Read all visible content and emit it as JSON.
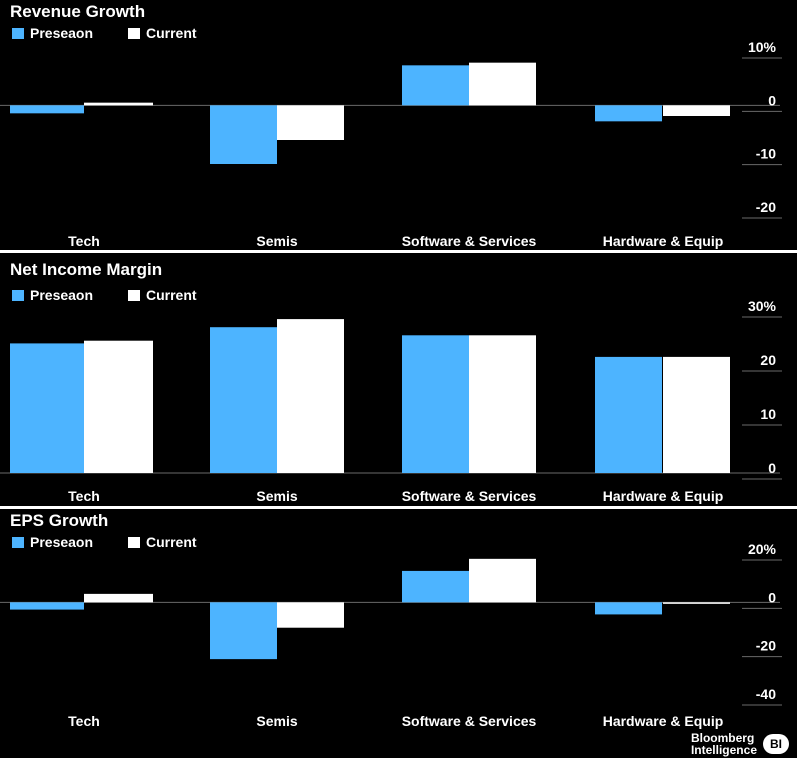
{
  "chart_data": [
    {
      "type": "bar",
      "title": "Revenue Growth",
      "categories": [
        "Tech",
        "Semis",
        "Software & Services",
        "Hardware & Equip"
      ],
      "series": [
        {
          "name": "Preseaon",
          "values": [
            -1.5,
            -11,
            7.5,
            -3
          ]
        },
        {
          "name": "Current",
          "values": [
            0.5,
            -6.5,
            8,
            -2
          ]
        }
      ],
      "yticks": [
        {
          "value": 10,
          "label": "10%"
        },
        {
          "value": 0,
          "label": "0"
        },
        {
          "value": -10,
          "label": "-10"
        },
        {
          "value": -20,
          "label": "-20"
        }
      ],
      "ylim": [
        -20,
        10
      ],
      "legend": "top-left",
      "grid": false
    },
    {
      "type": "bar",
      "title": "Net Income Margin",
      "categories": [
        "Tech",
        "Semis",
        "Software & Services",
        "Hardware & Equip"
      ],
      "series": [
        {
          "name": "Preseaon",
          "values": [
            24,
            27,
            25.5,
            21.5
          ]
        },
        {
          "name": "Current",
          "values": [
            24.5,
            28.5,
            25.5,
            21.5
          ]
        }
      ],
      "yticks": [
        {
          "value": 30,
          "label": "30%"
        },
        {
          "value": 20,
          "label": "20"
        },
        {
          "value": 10,
          "label": "10"
        },
        {
          "value": 0,
          "label": "0"
        }
      ],
      "ylim": [
        0,
        30
      ],
      "legend": "top-left",
      "grid": false
    },
    {
      "type": "bar",
      "title": "EPS Growth",
      "categories": [
        "Tech",
        "Semis",
        "Software & Services",
        "Hardware & Equip"
      ],
      "series": [
        {
          "name": "Preseaon",
          "values": [
            -3,
            -23.5,
            13,
            -5
          ]
        },
        {
          "name": "Current",
          "values": [
            3.5,
            -10.5,
            18,
            -0.5
          ]
        }
      ],
      "yticks": [
        {
          "value": 20,
          "label": "20%"
        },
        {
          "value": 0,
          "label": "0"
        },
        {
          "value": -20,
          "label": "-20"
        },
        {
          "value": -40,
          "label": "-40"
        }
      ],
      "ylim": [
        -40,
        20
      ],
      "legend": "top-left",
      "grid": false
    }
  ],
  "colors": {
    "preseason": "#4db4ff",
    "current": "#ffffff",
    "background": "#000000",
    "axis": "#6a6a6a"
  },
  "branding": {
    "line1": "Bloomberg",
    "line2": "Intelligence",
    "badge": "BI"
  }
}
